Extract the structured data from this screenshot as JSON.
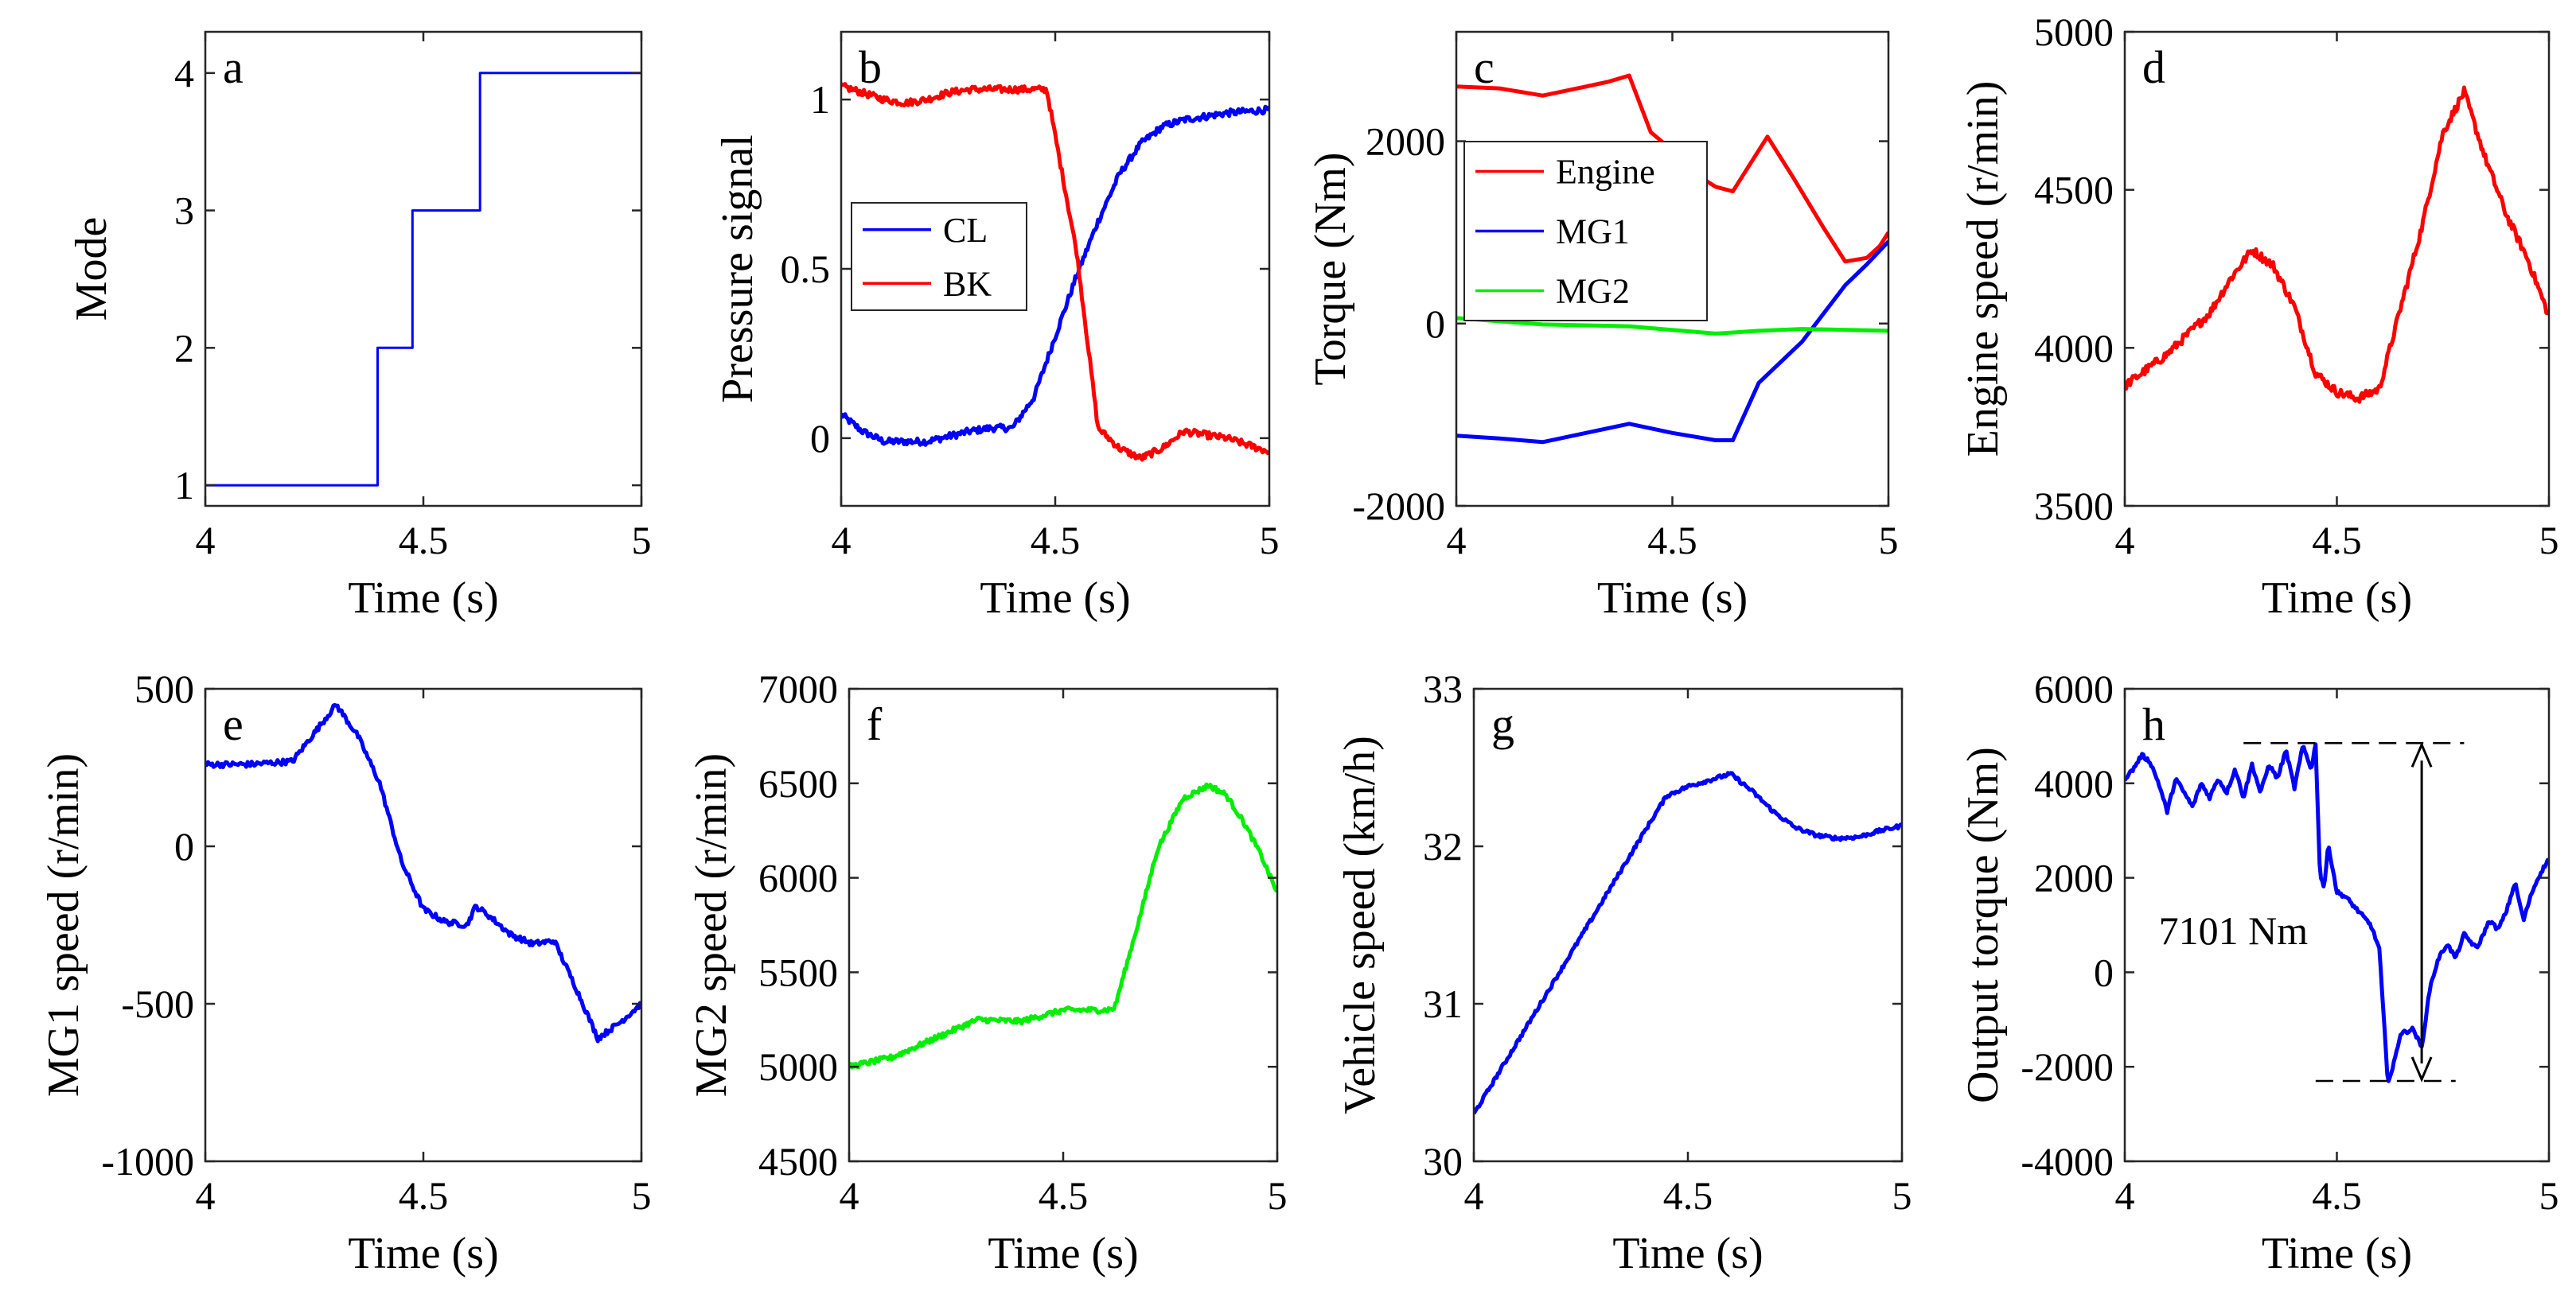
{
  "figure": {
    "xlabel": "Time (s)",
    "x_ticks": [
      "4",
      "4.5",
      "5"
    ]
  },
  "chart_data": [
    {
      "id": "a",
      "type": "line",
      "panel_label": "a",
      "xlabel": "Time (s)",
      "ylabel": "Mode",
      "xlim": [
        4,
        5
      ],
      "ylim": [
        0.85,
        4.3
      ],
      "x_ticks": [
        4,
        4.5,
        5
      ],
      "x_tick_labels": [
        "4",
        "4.5",
        "5"
      ],
      "y_ticks": [
        1,
        2,
        3,
        4
      ],
      "y_tick_labels": [
        "1",
        "2",
        "3",
        "4"
      ],
      "series": [
        {
          "name": "Mode",
          "color": "#0000ff",
          "step": true,
          "x": [
            4.0,
            4.395,
            4.395,
            4.475,
            4.475,
            4.63,
            4.63,
            5.0
          ],
          "y": [
            1,
            1,
            2,
            2,
            3,
            3,
            4,
            4
          ]
        }
      ]
    },
    {
      "id": "b",
      "type": "line",
      "panel_label": "b",
      "xlabel": "Time (s)",
      "ylabel": "Pressure signal",
      "xlim": [
        4,
        5
      ],
      "ylim": [
        -0.2,
        1.2
      ],
      "x_ticks": [
        4,
        4.5,
        5
      ],
      "x_tick_labels": [
        "4",
        "4.5",
        "5"
      ],
      "y_ticks": [
        0,
        0.5,
        1
      ],
      "y_tick_labels": [
        "0",
        "0.5",
        "1"
      ],
      "legend": {
        "entries": [
          "CL",
          "BK"
        ],
        "position": "center-left"
      },
      "series": [
        {
          "name": "CL",
          "color": "#0000ff",
          "noise": 0.01,
          "x": [
            4.0,
            4.05,
            4.1,
            4.2,
            4.3,
            4.35,
            4.4,
            4.45,
            4.5,
            4.55,
            4.6,
            4.65,
            4.7,
            4.75,
            4.8,
            4.85,
            4.9,
            4.95,
            5.0
          ],
          "y": [
            0.07,
            0.02,
            -0.01,
            -0.01,
            0.02,
            0.03,
            0.03,
            0.12,
            0.3,
            0.48,
            0.64,
            0.78,
            0.87,
            0.92,
            0.94,
            0.95,
            0.96,
            0.965,
            0.97
          ]
        },
        {
          "name": "BK",
          "color": "#ff0000",
          "noise": 0.01,
          "x": [
            4.0,
            4.05,
            4.1,
            4.15,
            4.2,
            4.25,
            4.3,
            4.35,
            4.4,
            4.48,
            4.55,
            4.6,
            4.65,
            4.7,
            4.75,
            4.8,
            4.85,
            4.9,
            4.95,
            5.0
          ],
          "y": [
            1.04,
            1.02,
            1.0,
            0.99,
            1.0,
            1.02,
            1.03,
            1.03,
            1.03,
            1.03,
            0.55,
            0.03,
            -0.03,
            -0.06,
            -0.03,
            0.02,
            0.01,
            0.0,
            -0.02,
            -0.04
          ]
        }
      ]
    },
    {
      "id": "c",
      "type": "line",
      "panel_label": "c",
      "xlabel": "Time (s)",
      "ylabel": "Torque (Nm)",
      "xlim": [
        4,
        5
      ],
      "ylim": [
        -2000,
        3200
      ],
      "x_ticks": [
        4,
        4.5,
        5
      ],
      "x_tick_labels": [
        "4",
        "4.5",
        "5"
      ],
      "y_ticks": [
        -2000,
        0,
        2000
      ],
      "y_tick_labels": [
        "-2000",
        "0",
        "2000"
      ],
      "legend": {
        "entries": [
          "Engine",
          "MG1",
          "MG2"
        ],
        "position": "top-left"
      },
      "series": [
        {
          "name": "Engine",
          "color": "#ff0000",
          "noise": 0,
          "x": [
            4.0,
            4.1,
            4.2,
            4.3,
            4.35,
            4.4,
            4.45,
            4.5,
            4.55,
            4.6,
            4.64,
            4.68,
            4.72,
            4.78,
            4.85,
            4.9,
            4.95,
            4.98,
            5.0
          ],
          "y": [
            2600,
            2580,
            2500,
            2600,
            2650,
            2720,
            2100,
            1900,
            1650,
            1500,
            1450,
            1750,
            2050,
            1600,
            1050,
            680,
            720,
            850,
            1000
          ]
        },
        {
          "name": "MG1",
          "color": "#0000ff",
          "noise": 0,
          "x": [
            4.0,
            4.1,
            4.2,
            4.3,
            4.4,
            4.5,
            4.6,
            4.64,
            4.7,
            4.8,
            4.9,
            4.95,
            5.0
          ],
          "y": [
            -1230,
            -1260,
            -1300,
            -1200,
            -1100,
            -1200,
            -1280,
            -1280,
            -650,
            -200,
            420,
            650,
            900
          ]
        },
        {
          "name": "MG2",
          "color": "#00ee00",
          "noise": 0,
          "x": [
            4.0,
            4.2,
            4.4,
            4.6,
            4.7,
            4.8,
            5.0
          ],
          "y": [
            60,
            -10,
            -30,
            -110,
            -80,
            -60,
            -80
          ]
        }
      ]
    },
    {
      "id": "d",
      "type": "line",
      "panel_label": "d",
      "xlabel": "Time (s)",
      "ylabel": "Engine speed (r/min)",
      "xlim": [
        4,
        5
      ],
      "ylim": [
        3500,
        5000
      ],
      "x_ticks": [
        4,
        4.5,
        5
      ],
      "x_tick_labels": [
        "4",
        "4.5",
        "5"
      ],
      "y_ticks": [
        3500,
        4000,
        4500,
        5000
      ],
      "y_tick_labels": [
        "3500",
        "4000",
        "4500",
        "5000"
      ],
      "series": [
        {
          "name": "Engine speed",
          "color": "#ff0000",
          "noise": 14,
          "x": [
            4.0,
            4.1,
            4.2,
            4.25,
            4.3,
            4.35,
            4.4,
            4.45,
            4.5,
            4.55,
            4.6,
            4.7,
            4.75,
            4.8,
            4.85,
            4.9,
            4.95,
            5.0
          ],
          "y": [
            3880,
            3980,
            4110,
            4220,
            4310,
            4260,
            4130,
            3920,
            3860,
            3840,
            3870,
            4380,
            4680,
            4810,
            4600,
            4420,
            4280,
            4100
          ]
        }
      ]
    },
    {
      "id": "e",
      "type": "line",
      "panel_label": "e",
      "xlabel": "Time (s)",
      "ylabel": "MG1 speed (r/min)",
      "xlim": [
        4,
        5
      ],
      "ylim": [
        -1000,
        500
      ],
      "x_ticks": [
        4,
        4.5,
        5
      ],
      "x_tick_labels": [
        "4",
        "4.5",
        "5"
      ],
      "y_ticks": [
        -1000,
        -500,
        0,
        500
      ],
      "y_tick_labels": [
        "-1000",
        "-500",
        "0",
        "500"
      ],
      "series": [
        {
          "name": "MG1 speed",
          "color": "#0000ff",
          "noise": 9,
          "x": [
            4.0,
            4.1,
            4.2,
            4.25,
            4.3,
            4.35,
            4.4,
            4.45,
            4.5,
            4.55,
            4.6,
            4.62,
            4.65,
            4.7,
            4.75,
            4.8,
            4.85,
            4.9,
            4.95,
            5.0
          ],
          "y": [
            260,
            260,
            270,
            360,
            450,
            350,
            200,
            -50,
            -200,
            -240,
            -250,
            -190,
            -220,
            -280,
            -310,
            -300,
            -450,
            -610,
            -560,
            -500
          ]
        }
      ]
    },
    {
      "id": "f",
      "type": "line",
      "panel_label": "f",
      "xlabel": "Time (s)",
      "ylabel": "MG2 speed (r/min)",
      "xlim": [
        4,
        5
      ],
      "ylim": [
        4500,
        7000
      ],
      "x_ticks": [
        4,
        4.5,
        5
      ],
      "x_tick_labels": [
        "4",
        "4.5",
        "5"
      ],
      "y_ticks": [
        4500,
        5000,
        5500,
        6000,
        6500,
        7000
      ],
      "y_tick_labels": [
        "4500",
        "5000",
        "5500",
        "6000",
        "6500",
        "7000"
      ],
      "series": [
        {
          "name": "MG2 speed",
          "color": "#00ee00",
          "noise": 14,
          "x": [
            4.0,
            4.1,
            4.2,
            4.3,
            4.4,
            4.5,
            4.6,
            4.62,
            4.68,
            4.72,
            4.78,
            4.84,
            4.88,
            4.92,
            4.96,
            5.0
          ],
          "y": [
            5000,
            5050,
            5150,
            5250,
            5240,
            5300,
            5300,
            5310,
            5800,
            6150,
            6420,
            6490,
            6440,
            6300,
            6130,
            5920
          ]
        }
      ]
    },
    {
      "id": "g",
      "type": "line",
      "panel_label": "g",
      "xlabel": "Time (s)",
      "ylabel": "Vehicle speed (km/h)",
      "xlim": [
        4,
        5
      ],
      "ylim": [
        30,
        33
      ],
      "x_ticks": [
        4,
        4.5,
        5
      ],
      "x_tick_labels": [
        "4",
        "4.5",
        "5"
      ],
      "y_ticks": [
        30,
        31,
        32,
        33
      ],
      "y_tick_labels": [
        "30",
        "31",
        "32",
        "33"
      ],
      "series": [
        {
          "name": "Vehicle speed",
          "color": "#0000ff",
          "noise": 0.012,
          "x": [
            4.0,
            4.1,
            4.2,
            4.3,
            4.4,
            4.45,
            4.5,
            4.55,
            4.6,
            4.65,
            4.7,
            4.75,
            4.8,
            4.85,
            4.9,
            4.95,
            5.0
          ],
          "y": [
            30.3,
            30.75,
            31.2,
            31.65,
            32.1,
            32.32,
            32.38,
            32.42,
            32.46,
            32.35,
            32.22,
            32.12,
            32.07,
            32.05,
            32.06,
            32.1,
            32.13
          ]
        }
      ]
    },
    {
      "id": "h",
      "type": "line",
      "panel_label": "h",
      "xlabel": "Time (s)",
      "ylabel": "Output torque (Nm)",
      "xlim": [
        4,
        5
      ],
      "ylim": [
        -4000,
        6000
      ],
      "x_ticks": [
        4,
        4.5,
        5
      ],
      "x_tick_labels": [
        "4",
        "4.5",
        "5"
      ],
      "y_ticks": [
        -4000,
        -2000,
        0,
        2000,
        4000,
        6000
      ],
      "y_tick_labels": [
        "-4000",
        "-2000",
        "0",
        "2000",
        "4000",
        "6000"
      ],
      "annotation": {
        "text": "7101 Nm",
        "top_value": 4850,
        "bottom_value": -2300,
        "arrow_x": 4.7,
        "text_x": 4.08,
        "text_y": 600
      },
      "series": [
        {
          "name": "Output torque",
          "color": "#0000ff",
          "noise": 40,
          "x": [
            4.0,
            4.02,
            4.04,
            4.06,
            4.08,
            4.1,
            4.12,
            4.14,
            4.16,
            4.18,
            4.2,
            4.22,
            4.24,
            4.26,
            4.28,
            4.3,
            4.32,
            4.34,
            4.36,
            4.38,
            4.4,
            4.42,
            4.44,
            4.45,
            4.46,
            4.47,
            4.48,
            4.5,
            4.52,
            4.55,
            4.58,
            4.6,
            4.62,
            4.63,
            4.65,
            4.68,
            4.7,
            4.72,
            4.74,
            4.76,
            4.78,
            4.8,
            4.83,
            4.86,
            4.88,
            4.9,
            4.92,
            4.94,
            4.96,
            4.98,
            5.0
          ],
          "y": [
            4100,
            4300,
            4600,
            4450,
            4000,
            3400,
            4100,
            3800,
            3500,
            4000,
            3700,
            4100,
            3800,
            4300,
            3700,
            4400,
            3800,
            4400,
            4100,
            4700,
            3900,
            4800,
            4300,
            4850,
            2100,
            1800,
            2700,
            1700,
            1600,
            1300,
            1000,
            500,
            -2300,
            -2100,
            -1300,
            -1200,
            -1600,
            -300,
            300,
            600,
            300,
            800,
            500,
            1100,
            900,
            1300,
            1900,
            1100,
            1700,
            2100,
            2400
          ]
        }
      ]
    }
  ]
}
